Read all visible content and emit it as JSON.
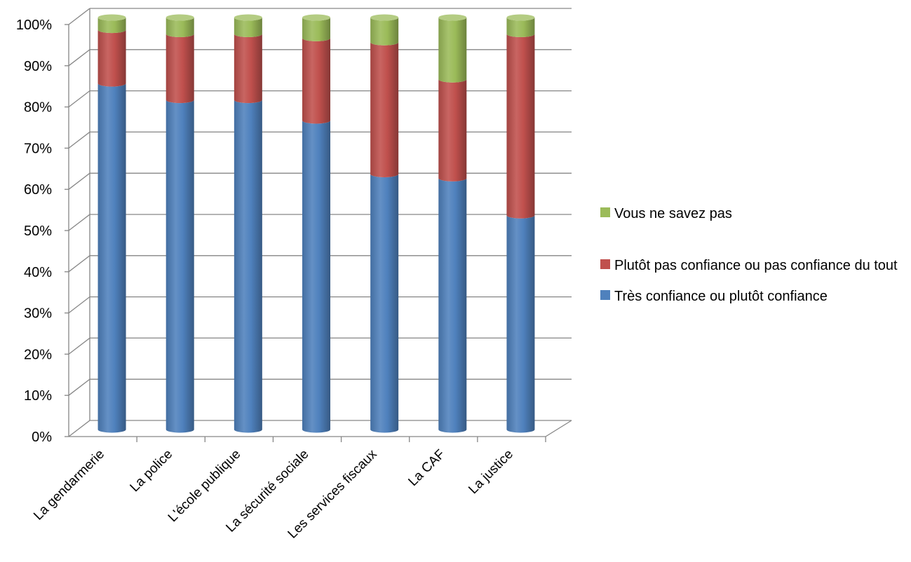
{
  "chart_data": {
    "type": "bar",
    "stacked": true,
    "percent": true,
    "style": "3d-cylinder",
    "categories": [
      "La gendarmerie",
      "La police",
      "L'école publique",
      "La sécurité sociale",
      "Les services fiscaux",
      "La CAF",
      "La justice"
    ],
    "series": [
      {
        "name": "Très confiance ou plutôt confiance",
        "color": "#4f81bd",
        "values": [
          84,
          80,
          80,
          75,
          62,
          61,
          52
        ]
      },
      {
        "name": "Plutôt pas confiance ou pas confiance du tout",
        "color": "#c0504d",
        "values": [
          13,
          16,
          16,
          20,
          32,
          24,
          44
        ]
      },
      {
        "name": "Vous ne savez pas",
        "color": "#9bbb59",
        "values": [
          3,
          4,
          4,
          5,
          6,
          15,
          4
        ]
      }
    ],
    "y_ticks": [
      "0%",
      "10%",
      "20%",
      "30%",
      "40%",
      "50%",
      "60%",
      "70%",
      "80%",
      "90%",
      "100%"
    ],
    "ylim": [
      0,
      100
    ],
    "grid": true,
    "legend_position": "right",
    "legend_order": [
      "Vous ne savez pas",
      "Plutôt pas confiance ou pas confiance du tout",
      "Très confiance ou plutôt confiance"
    ]
  }
}
